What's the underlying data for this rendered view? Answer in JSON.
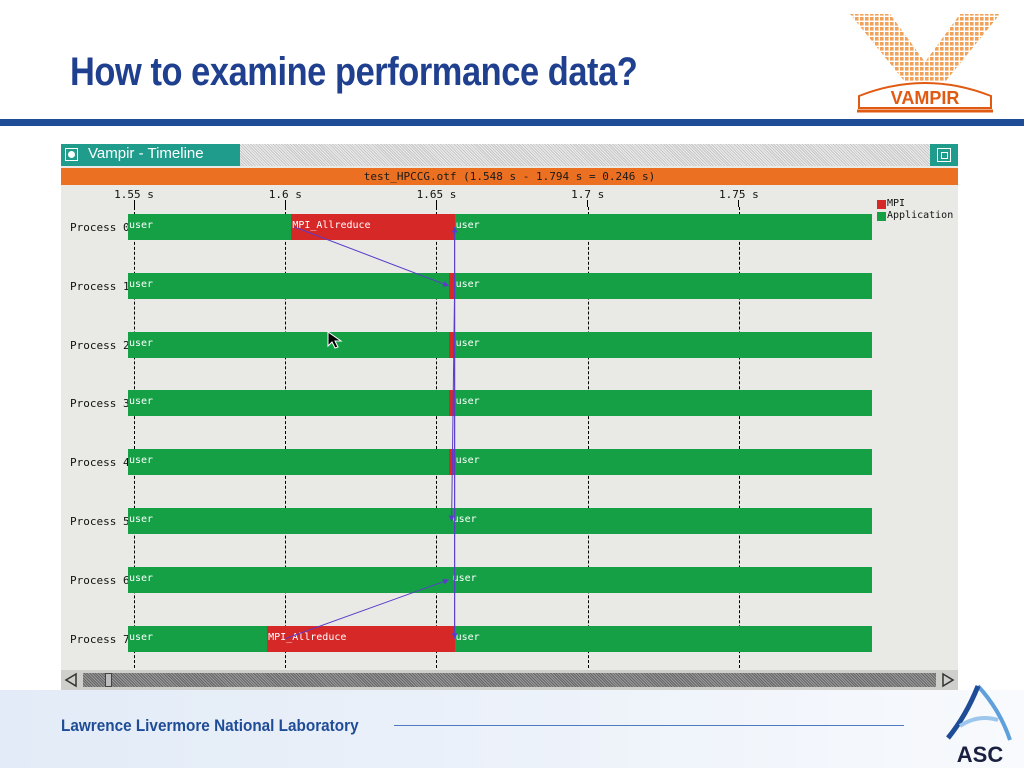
{
  "slide": {
    "title": "How to examine performance data?",
    "footer": "Lawrence Livermore National Laboratory",
    "logos": {
      "vampir": "VAMPIR",
      "asc": "ASC"
    }
  },
  "window": {
    "title": "Vampir - Timeline",
    "header": "test_HPCCG.otf (1.548 s - 1.794 s = 0.246 s)",
    "time_range": {
      "start_s": 1.548,
      "end_s": 1.794,
      "duration_s": 0.246
    },
    "ticks": [
      "1.55 s",
      "1.6 s",
      "1.65 s",
      "1.7 s",
      "1.75 s"
    ],
    "tick_values": [
      1.55,
      1.6,
      1.65,
      1.7,
      1.75
    ],
    "legend": [
      {
        "label": "MPI",
        "color": "#d72828"
      },
      {
        "label": "Application",
        "color": "#16a046"
      }
    ],
    "colors": {
      "application": "#16a046",
      "mpi": "#d72828",
      "message_line": "#5a3cc8",
      "header": "#ec7022",
      "titlebar": "#1f9c8c"
    },
    "processes": [
      {
        "name": "Process 0",
        "segments": [
          {
            "kind": "app",
            "label": "user",
            "start": 1.548,
            "end": 1.602
          },
          {
            "kind": "mpi",
            "label": "MPI_Allreduce",
            "start": 1.602,
            "end": 1.656
          },
          {
            "kind": "app",
            "label": "user",
            "start": 1.656,
            "end": 1.794
          }
        ]
      },
      {
        "name": "Process 1",
        "segments": [
          {
            "kind": "app",
            "label": "user",
            "start": 1.548,
            "end": 1.654
          },
          {
            "kind": "mpi",
            "label": "",
            "start": 1.654,
            "end": 1.656
          },
          {
            "kind": "app",
            "label": "user",
            "start": 1.656,
            "end": 1.794
          }
        ]
      },
      {
        "name": "Process 2",
        "segments": [
          {
            "kind": "app",
            "label": "user",
            "start": 1.548,
            "end": 1.654
          },
          {
            "kind": "mpi",
            "label": "",
            "start": 1.654,
            "end": 1.656
          },
          {
            "kind": "app",
            "label": "user",
            "start": 1.656,
            "end": 1.794
          }
        ]
      },
      {
        "name": "Process 3",
        "segments": [
          {
            "kind": "app",
            "label": "user",
            "start": 1.548,
            "end": 1.654
          },
          {
            "kind": "mpi",
            "label": "",
            "start": 1.654,
            "end": 1.656
          },
          {
            "kind": "app",
            "label": "user",
            "start": 1.656,
            "end": 1.794
          }
        ]
      },
      {
        "name": "Process 4",
        "segments": [
          {
            "kind": "app",
            "label": "user",
            "start": 1.548,
            "end": 1.654
          },
          {
            "kind": "mpi",
            "label": "",
            "start": 1.654,
            "end": 1.656
          },
          {
            "kind": "app",
            "label": "user",
            "start": 1.656,
            "end": 1.794
          }
        ]
      },
      {
        "name": "Process 5",
        "segments": [
          {
            "kind": "app",
            "label": "user",
            "start": 1.548,
            "end": 1.655
          },
          {
            "kind": "app",
            "label": "user",
            "start": 1.655,
            "end": 1.794
          }
        ]
      },
      {
        "name": "Process 6",
        "segments": [
          {
            "kind": "app",
            "label": "user",
            "start": 1.548,
            "end": 1.655
          },
          {
            "kind": "app",
            "label": "user",
            "start": 1.655,
            "end": 1.794
          }
        ]
      },
      {
        "name": "Process 7",
        "segments": [
          {
            "kind": "app",
            "label": "user",
            "start": 1.548,
            "end": 1.594
          },
          {
            "kind": "mpi",
            "label": "MPI_Allreduce",
            "start": 1.594,
            "end": 1.656
          },
          {
            "kind": "app",
            "label": "user",
            "start": 1.656,
            "end": 1.794
          }
        ]
      }
    ],
    "messages": [
      {
        "from": 0,
        "from_time": 1.603,
        "to": 1,
        "to_time": 1.654
      },
      {
        "from": 7,
        "from_time": 1.6,
        "to": 6,
        "to_time": 1.654
      },
      {
        "from": 0,
        "from_time": 1.656,
        "to": 7,
        "to_time": 1.656
      },
      {
        "from": 1,
        "from_time": 1.656,
        "to": 5,
        "to_time": 1.655
      },
      {
        "from": 7,
        "from_time": 1.656,
        "to": 0,
        "to_time": 1.656
      }
    ]
  }
}
